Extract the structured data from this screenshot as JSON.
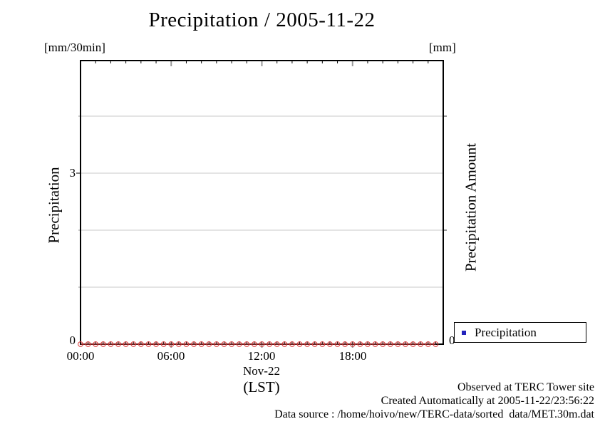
{
  "title": "Precipitation / 2005-11-22",
  "footer": {
    "lines": [
      "Observed at TERC Tower site",
      "Created Automatically at 2005-11-22/23:56:22",
      "Data source : /home/hoivo/new/TERC-data/sorted  data/MET.30m.dat"
    ]
  },
  "colors": {
    "series_marker": "#dd3b3b",
    "legend_swatch": "#2222bb",
    "gridline": "#c9c9c9",
    "major_tick_gray": "#989898",
    "frame": "#000000"
  },
  "chart_data": {
    "type": "line",
    "title": "Precipitation / 2005-11-22",
    "unit_left": "[mm/30min]",
    "unit_right": "[mm]",
    "ylabel_left": "Precipitation",
    "ylabel_right": "Precipitation Amount",
    "xlabel_date": "Nov-22",
    "xlabel_tz": "(LST)",
    "grid": true,
    "legend_position": "outside-right-bottom",
    "ylim": [
      0,
      5
    ],
    "xlim": [
      "00:00",
      "24:00"
    ],
    "yticks_labeled": [
      {
        "v": 0,
        "label": "0"
      },
      {
        "v": 3,
        "label": "3"
      }
    ],
    "right_axis_zero_label": "0",
    "right_axis_ticks_y": [
      2,
      4
    ],
    "gridlines_y": [
      1,
      2,
      3,
      4
    ],
    "xtick_labels_shown": [
      "00:00",
      "06:00",
      "12:00",
      "18:00"
    ],
    "xticks_major": [
      "06:00",
      "12:00",
      "18:00"
    ],
    "x": [
      "00:00",
      "00:30",
      "01:00",
      "01:30",
      "02:00",
      "02:30",
      "03:00",
      "03:30",
      "04:00",
      "04:30",
      "05:00",
      "05:30",
      "06:00",
      "06:30",
      "07:00",
      "07:30",
      "08:00",
      "08:30",
      "09:00",
      "09:30",
      "10:00",
      "10:30",
      "11:00",
      "11:30",
      "12:00",
      "12:30",
      "13:00",
      "13:30",
      "14:00",
      "14:30",
      "15:00",
      "15:30",
      "16:00",
      "16:30",
      "17:00",
      "17:30",
      "18:00",
      "18:30",
      "19:00",
      "19:30",
      "20:00",
      "20:30",
      "21:00",
      "21:30",
      "22:00",
      "22:30",
      "23:00",
      "23:30"
    ],
    "series": [
      {
        "name": "Precipitation",
        "marker": "open-circle",
        "color": "#dd3b3b",
        "values": [
          0,
          0,
          0,
          0,
          0,
          0,
          0,
          0,
          0,
          0,
          0,
          0,
          0,
          0,
          0,
          0,
          0,
          0,
          0,
          0,
          0,
          0,
          0,
          0,
          0,
          0,
          0,
          0,
          0,
          0,
          0,
          0,
          0,
          0,
          0,
          0,
          0,
          0,
          0,
          0,
          0,
          0,
          0,
          0,
          0,
          0,
          0,
          0
        ]
      }
    ]
  }
}
